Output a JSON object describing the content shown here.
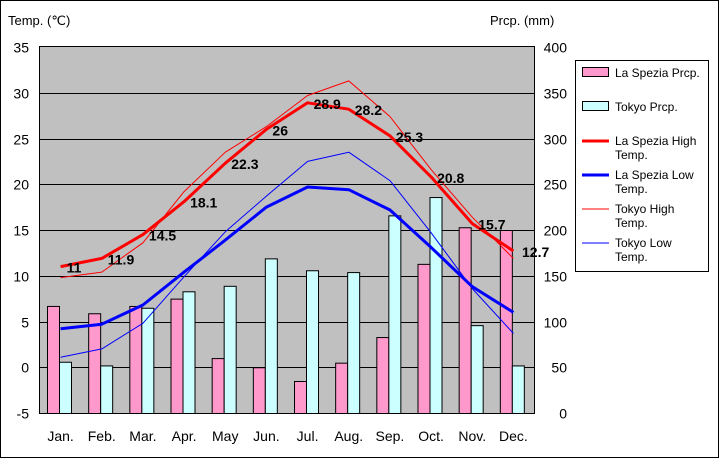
{
  "colors": {
    "la_spezia_prcp": "#ff99cc",
    "tokyo_prcp": "#ccffff",
    "la_spezia_high": "#ff0000",
    "la_spezia_low": "#0000ff",
    "tokyo_high": "#ff0000",
    "tokyo_low": "#0000ff",
    "plot_background": "#c0c0c0"
  },
  "chart_data": {
    "type": "bar",
    "title": "",
    "categories": [
      "Jan.",
      "Feb.",
      "Mar.",
      "Apr.",
      "May",
      "Jun.",
      "Jul.",
      "Aug.",
      "Sep.",
      "Oct.",
      "Nov.",
      "Dec."
    ],
    "ylabel_left": "Temp. (℃)",
    "ylabel_right": "Prcp. (mm)",
    "ylim_left": [
      -5,
      35
    ],
    "ylim_right": [
      0,
      400
    ],
    "yticks_left": [
      -5,
      0,
      5,
      10,
      15,
      20,
      25,
      30,
      35
    ],
    "yticks_right": [
      0,
      50,
      100,
      150,
      200,
      250,
      300,
      350,
      400
    ],
    "grid": true,
    "legend_position": "right",
    "bar_series": [
      {
        "name": "La Spezia Prcp.",
        "axis": "right",
        "values": [
          117,
          109,
          117,
          125,
          60,
          50,
          35,
          55,
          83,
          163,
          203,
          200
        ]
      },
      {
        "name": "Tokyo Prcp.",
        "axis": "right",
        "values": [
          56,
          52,
          115,
          133,
          139,
          169,
          156,
          154,
          216,
          236,
          96,
          52
        ]
      }
    ],
    "line_series": [
      {
        "name": "La Spezia High Temp.",
        "axis": "left",
        "values": [
          11,
          11.9,
          14.5,
          18.1,
          22.3,
          26,
          28.9,
          28.2,
          25.3,
          20.8,
          15.7,
          12.7
        ],
        "width": 3
      },
      {
        "name": "La Spezia Low Temp.",
        "axis": "left",
        "values": [
          4.2,
          4.7,
          6.8,
          10.4,
          13.9,
          17.5,
          19.7,
          19.4,
          17.2,
          13.1,
          8.8,
          6.0
        ],
        "width": 3
      },
      {
        "name": "Tokyo High Temp.",
        "axis": "left",
        "values": [
          9.8,
          10.4,
          13.6,
          19.2,
          23.5,
          26.3,
          29.7,
          31.3,
          27.4,
          21.6,
          16.4,
          11.9
        ],
        "width": 1
      },
      {
        "name": "Tokyo Low Temp.",
        "axis": "left",
        "values": [
          1.1,
          2.0,
          4.8,
          9.9,
          14.8,
          18.7,
          22.5,
          23.5,
          20.4,
          14.7,
          8.6,
          3.7
        ],
        "width": 1
      }
    ],
    "data_labels": [
      "11",
      "11.9",
      "14.5",
      "18.1",
      "22.3",
      "26",
      "28.9",
      "28.2",
      "25.3",
      "20.8",
      "15.7",
      "12.7"
    ]
  }
}
